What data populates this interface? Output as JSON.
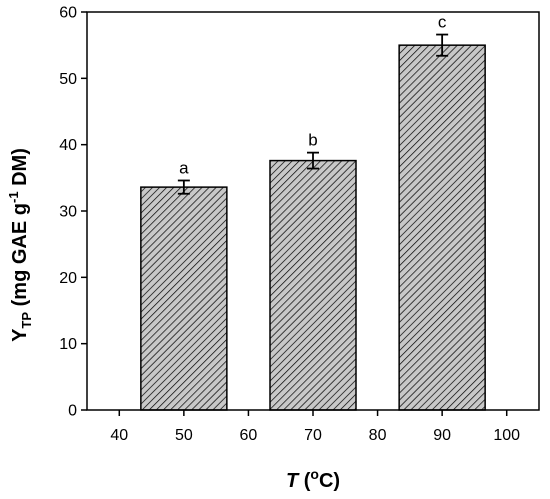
{
  "chart_data": {
    "type": "bar",
    "x": [
      50,
      70,
      90
    ],
    "values": [
      33.6,
      37.6,
      55.0
    ],
    "errors": [
      1.0,
      1.2,
      1.6
    ],
    "significance_labels": [
      "a",
      "b",
      "c"
    ],
    "bar_fill": "hatched-gray",
    "xlim": [
      35,
      105
    ],
    "ylim": [
      0,
      60
    ],
    "x_ticks": [
      40,
      50,
      60,
      70,
      80,
      90,
      100
    ],
    "y_ticks": [
      0,
      10,
      20,
      30,
      40,
      50,
      60
    ],
    "xlabel": {
      "italic": "T",
      "rest_open": " (",
      "sup": "o",
      "rest_close": "C)"
    },
    "ylabel": {
      "main": "Y",
      "sub": "TP",
      "part2": " (mg GAE g",
      "sup": "-1",
      "part3": " DM)"
    },
    "grid": false,
    "colors": {
      "bar_fill": "#c8c8c8",
      "hatch": "#000000",
      "axis": "#000000"
    }
  }
}
